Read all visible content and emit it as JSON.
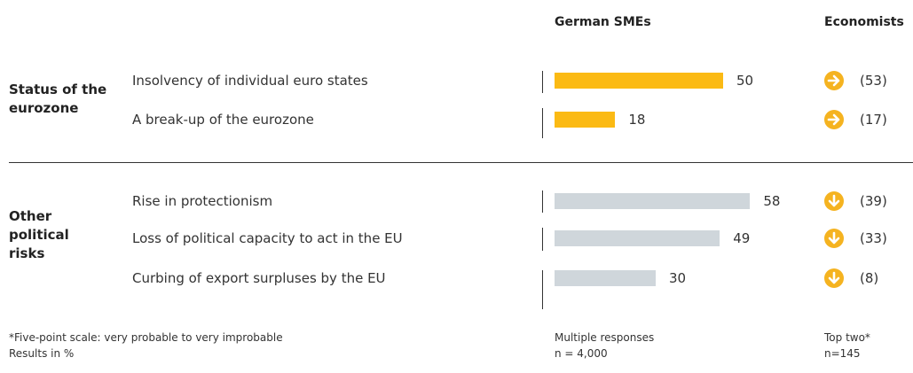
{
  "chart_data": {
    "type": "bar",
    "column_headers": [
      "German SMEs",
      "Economists"
    ],
    "groups": [
      {
        "name": "Status of the eurozone",
        "color": "#fbba14",
        "categories": [
          "Insolvency of individual euro states",
          "A break-up of the eurozone"
        ],
        "values": [
          50,
          18
        ],
        "economists": [
          53,
          17
        ],
        "economists_labels": [
          "(53)",
          "(17)"
        ],
        "arrow": "right"
      },
      {
        "name": "Other political risks",
        "color": "#cfd6db",
        "categories": [
          "Rise in protectionism",
          "Loss of political capacity to act in the EU",
          "Curbing of export surpluses by the EU"
        ],
        "values": [
          58,
          49,
          30
        ],
        "economists": [
          39,
          33,
          8
        ],
        "economists_labels": [
          "(39)",
          "(33)",
          "(8)"
        ],
        "arrow": "down"
      }
    ],
    "arrow_color": "#f5b320",
    "xlim": [
      0,
      100
    ],
    "footnotes": [
      [
        "*Five-point scale: very probable to very improbable",
        "Results in %"
      ],
      [
        "Multiple responses",
        "n = 4,000"
      ],
      [
        "Top two*",
        "n=145"
      ]
    ]
  }
}
